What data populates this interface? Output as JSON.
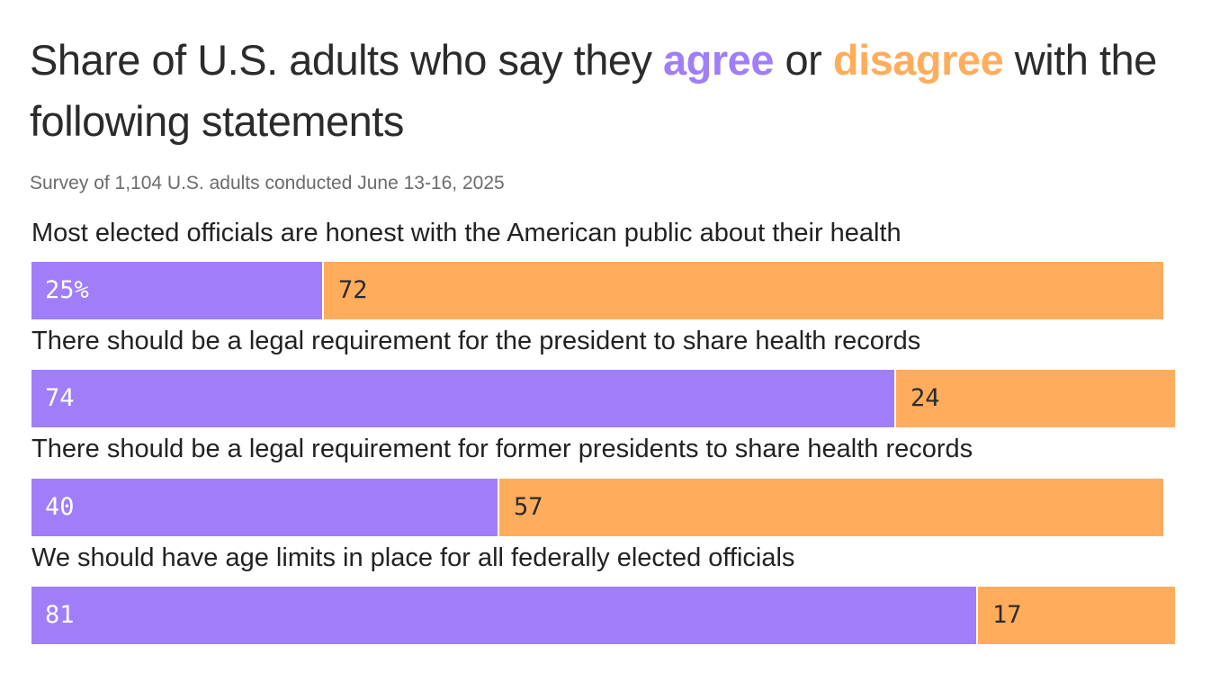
{
  "title": {
    "prefix": "Share of U.S. adults who say they ",
    "agree": "agree",
    "middle": " or ",
    "disagree": "disagree",
    "suffix": " with the following statements"
  },
  "subtitle": "Survey of 1,104 U.S. adults conducted June 13-16, 2025",
  "colors": {
    "agree": "#a07ef9",
    "disagree": "#ffad5c"
  },
  "chart_data": {
    "type": "bar",
    "orientation": "horizontal",
    "stacked": true,
    "categories": [
      "Most elected officials are honest with the American public about their health",
      "There should be a legal requirement for the president to share health records",
      "There should be a legal requirement for former presidents to share health records",
      "We should have age limits in place for all federally elected officials"
    ],
    "series": [
      {
        "name": "agree",
        "values": [
          25,
          74,
          40,
          81
        ]
      },
      {
        "name": "disagree",
        "values": [
          72,
          24,
          57,
          17
        ]
      }
    ],
    "value_labels": [
      [
        "25%",
        "72"
      ],
      [
        "74",
        "24"
      ],
      [
        "40",
        "57"
      ],
      [
        "81",
        "17"
      ]
    ],
    "xlim": [
      0,
      100
    ]
  }
}
